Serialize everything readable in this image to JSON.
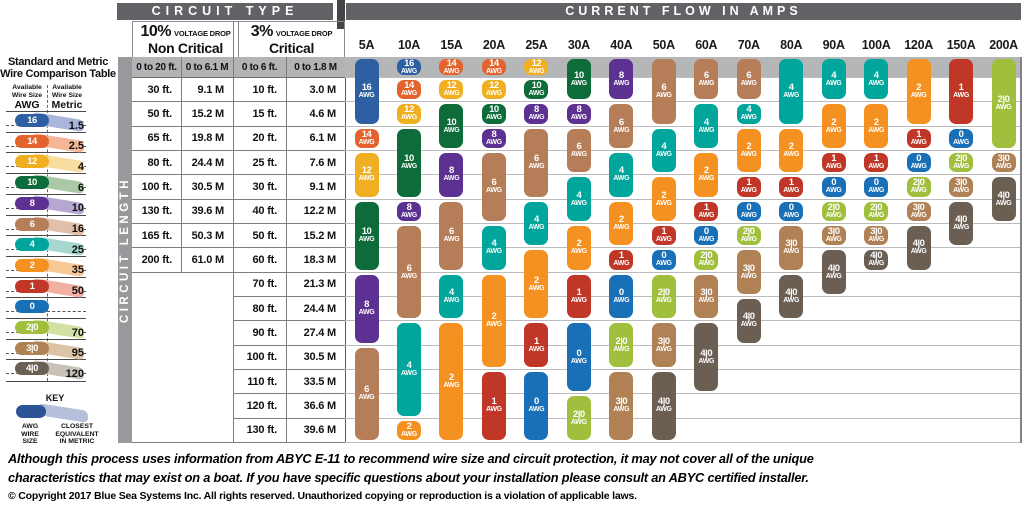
{
  "titles": {
    "circuit_type": "CIRCUIT TYPE",
    "current_flow": "CURRENT FLOW IN AMPS",
    "circuit_length": "CIRCUIT LENGTH",
    "drop_10_pct": "10%",
    "drop_10_sub": "VOLTAGE DROP",
    "drop_10_name": "Non Critical",
    "drop_3_pct": "3%",
    "drop_3_sub": "VOLTAGE DROP",
    "drop_3_name": "Critical"
  },
  "comparison_table": {
    "title_line1": "Standard and Metric",
    "title_line2": "Wire Comparison Table",
    "awg_header": {
      "line1": "Available",
      "line2": "Wire Size",
      "line3": "AWG"
    },
    "metric_header": {
      "line1": "Available",
      "line2": "Wire Size",
      "line3": "Metric"
    },
    "rows": [
      {
        "awg": "16",
        "metric": "1.5",
        "band": "#a9b5d9"
      },
      {
        "awg": "14",
        "metric": "2.5",
        "band": "#f3b697"
      },
      {
        "awg": "12",
        "metric": "4",
        "band": "#f8dda0"
      },
      {
        "awg": "10",
        "metric": "6",
        "band": "#a9c9a7"
      },
      {
        "awg": "8",
        "metric": "10",
        "band": "#b5a6d2"
      },
      {
        "awg": "6",
        "metric": "16",
        "band": "#e0c0a8"
      },
      {
        "awg": "4",
        "metric": "25",
        "band": "#a5d6cf"
      },
      {
        "awg": "2",
        "metric": "35",
        "band": "#f9c897"
      },
      {
        "awg": "1",
        "metric": "50",
        "band": "#f0b0a2"
      },
      {
        "awg": "0",
        "metric": "",
        "band": ""
      },
      {
        "awg": "2|0",
        "metric": "70",
        "band": "#d3e2a4"
      },
      {
        "awg": "3|0",
        "metric": "95",
        "band": "#dcc3a6"
      },
      {
        "awg": "4|0",
        "metric": "120",
        "band": "#c8c1b8"
      }
    ],
    "key": {
      "title": "KEY",
      "pill_label": "AWG\nWIRE\nSIZE",
      "band_label": "CLOSEST\nEQUIVALENT\nIN METRIC",
      "pill_color": "#2d5397",
      "band_color": "#b7c0da"
    }
  },
  "chart_data": {
    "type": "heatmap",
    "title": "CURRENT FLOW IN AMPS",
    "x_axis_label": "CURRENT FLOW IN AMPS",
    "y_axis_label": "CIRCUIT LENGTH",
    "x_labels": [
      "5A",
      "10A",
      "15A",
      "20A",
      "25A",
      "30A",
      "40A",
      "50A",
      "60A",
      "70A",
      "80A",
      "90A",
      "100A",
      "120A",
      "150A",
      "200A"
    ],
    "row_labels": [
      {
        "ft_10pct": "0 to 20 ft.",
        "m_10pct": "0 to 6.1 M",
        "ft_3pct": "0 to 6 ft.",
        "m_3pct": "0 to 1.8 M"
      },
      {
        "ft_10pct": "30 ft.",
        "m_10pct": "9.1 M",
        "ft_3pct": "10 ft.",
        "m_3pct": "3.0 M"
      },
      {
        "ft_10pct": "50 ft.",
        "m_10pct": "15.2 M",
        "ft_3pct": "15 ft.",
        "m_3pct": "4.6 M"
      },
      {
        "ft_10pct": "65 ft.",
        "m_10pct": "19.8 M",
        "ft_3pct": "20 ft.",
        "m_3pct": "6.1 M"
      },
      {
        "ft_10pct": "80 ft.",
        "m_10pct": "24.4 M",
        "ft_3pct": "25 ft.",
        "m_3pct": "7.6 M"
      },
      {
        "ft_10pct": "100 ft.",
        "m_10pct": "30.5 M",
        "ft_3pct": "30 ft.",
        "m_3pct": "9.1 M"
      },
      {
        "ft_10pct": "130 ft.",
        "m_10pct": "39.6 M",
        "ft_3pct": "40 ft.",
        "m_3pct": "12.2 M"
      },
      {
        "ft_10pct": "165 ft.",
        "m_10pct": "50.3 M",
        "ft_3pct": "50 ft.",
        "m_3pct": "15.2 M"
      },
      {
        "ft_10pct": "200 ft.",
        "m_10pct": "61.0 M",
        "ft_3pct": "60 ft.",
        "m_3pct": "18.3 M"
      },
      {
        "ft_10pct": "",
        "m_10pct": "",
        "ft_3pct": "70 ft.",
        "m_3pct": "21.3 M"
      },
      {
        "ft_10pct": "",
        "m_10pct": "",
        "ft_3pct": "80 ft.",
        "m_3pct": "24.4 M"
      },
      {
        "ft_10pct": "",
        "m_10pct": "",
        "ft_3pct": "90 ft.",
        "m_3pct": "27.4 M"
      },
      {
        "ft_10pct": "",
        "m_10pct": "",
        "ft_3pct": "100 ft.",
        "m_3pct": "30.5 M"
      },
      {
        "ft_10pct": "",
        "m_10pct": "",
        "ft_3pct": "110 ft.",
        "m_3pct": "33.5 M"
      },
      {
        "ft_10pct": "",
        "m_10pct": "",
        "ft_3pct": "120 ft.",
        "m_3pct": "36.6 M"
      },
      {
        "ft_10pct": "",
        "m_10pct": "",
        "ft_3pct": "130 ft.",
        "m_3pct": "39.6 M"
      }
    ],
    "wire_colors": {
      "16": "#2e5fa3",
      "14": "#e4632d",
      "12": "#efaf21",
      "10": "#0e6b3a",
      "8": "#5d3191",
      "6": "#b67e58",
      "4": "#00a59b",
      "2": "#f59120",
      "1": "#c13727",
      "0": "#1a70b7",
      "2|0": "#a0bf3d",
      "3|0": "#b08154",
      "4|0": "#6b5f54"
    },
    "columns": [
      {
        "amp": "5A",
        "segments": [
          {
            "awg": "16",
            "rows": [
              0,
              2
            ]
          },
          {
            "awg": "14",
            "rows": [
              3,
              3
            ]
          },
          {
            "awg": "12",
            "rows": [
              4,
              5
            ]
          },
          {
            "awg": "10",
            "rows": [
              6,
              8
            ]
          },
          {
            "awg": "8",
            "rows": [
              9,
              11
            ]
          },
          {
            "awg": "6",
            "rows": [
              12,
              15
            ]
          }
        ]
      },
      {
        "amp": "10A",
        "segments": [
          {
            "awg": "16",
            "rows": [
              0,
              0
            ]
          },
          {
            "awg": "14",
            "rows": [
              1,
              1
            ]
          },
          {
            "awg": "12",
            "rows": [
              2,
              2
            ]
          },
          {
            "awg": "10",
            "rows": [
              3,
              5
            ]
          },
          {
            "awg": "8",
            "rows": [
              6,
              6
            ]
          },
          {
            "awg": "6",
            "rows": [
              7,
              10
            ]
          },
          {
            "awg": "4",
            "rows": [
              11,
              14
            ]
          },
          {
            "awg": "2",
            "rows": [
              15,
              15
            ]
          }
        ]
      },
      {
        "amp": "15A",
        "segments": [
          {
            "awg": "14",
            "rows": [
              0,
              0
            ]
          },
          {
            "awg": "12",
            "rows": [
              1,
              1
            ]
          },
          {
            "awg": "10",
            "rows": [
              2,
              3
            ]
          },
          {
            "awg": "8",
            "rows": [
              4,
              5
            ]
          },
          {
            "awg": "6",
            "rows": [
              6,
              8
            ]
          },
          {
            "awg": "4",
            "rows": [
              9,
              10
            ]
          },
          {
            "awg": "2",
            "rows": [
              11,
              15
            ]
          }
        ]
      },
      {
        "amp": "20A",
        "segments": [
          {
            "awg": "14",
            "rows": [
              0,
              0
            ]
          },
          {
            "awg": "12",
            "rows": [
              1,
              1
            ]
          },
          {
            "awg": "10",
            "rows": [
              2,
              2
            ]
          },
          {
            "awg": "8",
            "rows": [
              3,
              3
            ]
          },
          {
            "awg": "6",
            "rows": [
              4,
              6
            ]
          },
          {
            "awg": "4",
            "rows": [
              7,
              8
            ]
          },
          {
            "awg": "2",
            "rows": [
              9,
              12
            ]
          },
          {
            "awg": "1",
            "rows": [
              13,
              15
            ]
          }
        ]
      },
      {
        "amp": "25A",
        "segments": [
          {
            "awg": "12",
            "rows": [
              0,
              0
            ]
          },
          {
            "awg": "10",
            "rows": [
              1,
              1
            ]
          },
          {
            "awg": "8",
            "rows": [
              2,
              2
            ]
          },
          {
            "awg": "6",
            "rows": [
              3,
              5
            ]
          },
          {
            "awg": "4",
            "rows": [
              6,
              7
            ]
          },
          {
            "awg": "2",
            "rows": [
              8,
              10
            ]
          },
          {
            "awg": "1",
            "rows": [
              11,
              12
            ]
          },
          {
            "awg": "0",
            "rows": [
              13,
              15
            ]
          }
        ]
      },
      {
        "amp": "30A",
        "segments": [
          {
            "awg": "10",
            "rows": [
              0,
              1
            ]
          },
          {
            "awg": "8",
            "rows": [
              2,
              2
            ]
          },
          {
            "awg": "6",
            "rows": [
              3,
              4
            ]
          },
          {
            "awg": "4",
            "rows": [
              5,
              6
            ]
          },
          {
            "awg": "2",
            "rows": [
              7,
              8
            ]
          },
          {
            "awg": "1",
            "rows": [
              9,
              10
            ]
          },
          {
            "awg": "0",
            "rows": [
              11,
              13
            ]
          },
          {
            "awg": "2|0",
            "rows": [
              14,
              15
            ]
          }
        ]
      },
      {
        "amp": "40A",
        "segments": [
          {
            "awg": "8",
            "rows": [
              0,
              1
            ]
          },
          {
            "awg": "6",
            "rows": [
              2,
              3
            ]
          },
          {
            "awg": "4",
            "rows": [
              4,
              5
            ]
          },
          {
            "awg": "2",
            "rows": [
              6,
              7
            ]
          },
          {
            "awg": "1",
            "rows": [
              8,
              8
            ]
          },
          {
            "awg": "0",
            "rows": [
              9,
              10
            ]
          },
          {
            "awg": "2|0",
            "rows": [
              11,
              12
            ]
          },
          {
            "awg": "3|0",
            "rows": [
              13,
              15
            ]
          }
        ]
      },
      {
        "amp": "50A",
        "segments": [
          {
            "awg": "6",
            "rows": [
              0,
              2
            ]
          },
          {
            "awg": "4",
            "rows": [
              3,
              4
            ]
          },
          {
            "awg": "2",
            "rows": [
              5,
              6
            ]
          },
          {
            "awg": "1",
            "rows": [
              7,
              7
            ]
          },
          {
            "awg": "0",
            "rows": [
              8,
              8
            ]
          },
          {
            "awg": "2|0",
            "rows": [
              9,
              10
            ]
          },
          {
            "awg": "3|0",
            "rows": [
              11,
              12
            ]
          },
          {
            "awg": "4|0",
            "rows": [
              13,
              15
            ]
          }
        ]
      },
      {
        "amp": "60A",
        "segments": [
          {
            "awg": "6",
            "rows": [
              0,
              1
            ]
          },
          {
            "awg": "4",
            "rows": [
              2,
              3
            ]
          },
          {
            "awg": "2",
            "rows": [
              4,
              5
            ]
          },
          {
            "awg": "1",
            "rows": [
              6,
              6
            ]
          },
          {
            "awg": "0",
            "rows": [
              7,
              7
            ]
          },
          {
            "awg": "2|0",
            "rows": [
              8,
              8
            ]
          },
          {
            "awg": "3|0",
            "rows": [
              9,
              10
            ]
          },
          {
            "awg": "4|0",
            "rows": [
              11,
              13
            ]
          }
        ]
      },
      {
        "amp": "70A",
        "segments": [
          {
            "awg": "6",
            "rows": [
              0,
              1
            ]
          },
          {
            "awg": "4",
            "rows": [
              2,
              2
            ]
          },
          {
            "awg": "2",
            "rows": [
              3,
              4
            ]
          },
          {
            "awg": "1",
            "rows": [
              5,
              5
            ]
          },
          {
            "awg": "0",
            "rows": [
              6,
              6
            ]
          },
          {
            "awg": "2|0",
            "rows": [
              7,
              7
            ]
          },
          {
            "awg": "3|0",
            "rows": [
              8,
              9
            ]
          },
          {
            "awg": "4|0",
            "rows": [
              10,
              11
            ]
          }
        ]
      },
      {
        "amp": "80A",
        "segments": [
          {
            "awg": "4",
            "rows": [
              0,
              2
            ]
          },
          {
            "awg": "2",
            "rows": [
              3,
              4
            ]
          },
          {
            "awg": "1",
            "rows": [
              5,
              5
            ]
          },
          {
            "awg": "0",
            "rows": [
              6,
              6
            ]
          },
          {
            "awg": "3|0",
            "rows": [
              7,
              8
            ]
          },
          {
            "awg": "4|0",
            "rows": [
              9,
              10
            ]
          }
        ]
      },
      {
        "amp": "90A",
        "segments": [
          {
            "awg": "4",
            "rows": [
              0,
              1
            ]
          },
          {
            "awg": "2",
            "rows": [
              2,
              3
            ]
          },
          {
            "awg": "1",
            "rows": [
              4,
              4
            ]
          },
          {
            "awg": "0",
            "rows": [
              5,
              5
            ]
          },
          {
            "awg": "2|0",
            "rows": [
              6,
              6
            ]
          },
          {
            "awg": "3|0",
            "rows": [
              7,
              7
            ]
          },
          {
            "awg": "4|0",
            "rows": [
              8,
              9
            ]
          }
        ]
      },
      {
        "amp": "100A",
        "segments": [
          {
            "awg": "4",
            "rows": [
              0,
              1
            ]
          },
          {
            "awg": "2",
            "rows": [
              2,
              3
            ]
          },
          {
            "awg": "1",
            "rows": [
              4,
              4
            ]
          },
          {
            "awg": "0",
            "rows": [
              5,
              5
            ]
          },
          {
            "awg": "2|0",
            "rows": [
              6,
              6
            ]
          },
          {
            "awg": "3|0",
            "rows": [
              7,
              7
            ]
          },
          {
            "awg": "4|0",
            "rows": [
              8,
              8
            ]
          }
        ]
      },
      {
        "amp": "120A",
        "segments": [
          {
            "awg": "2",
            "rows": [
              0,
              2
            ]
          },
          {
            "awg": "1",
            "rows": [
              3,
              3
            ]
          },
          {
            "awg": "0",
            "rows": [
              4,
              4
            ]
          },
          {
            "awg": "2|0",
            "rows": [
              5,
              5
            ]
          },
          {
            "awg": "3|0",
            "rows": [
              6,
              6
            ]
          },
          {
            "awg": "4|0",
            "rows": [
              7,
              8
            ]
          }
        ]
      },
      {
        "amp": "150A",
        "segments": [
          {
            "awg": "1",
            "rows": [
              0,
              2
            ]
          },
          {
            "awg": "0",
            "rows": [
              3,
              3
            ]
          },
          {
            "awg": "2|0",
            "rows": [
              4,
              4
            ]
          },
          {
            "awg": "3|0",
            "rows": [
              5,
              5
            ]
          },
          {
            "awg": "4|0",
            "rows": [
              6,
              7
            ]
          }
        ]
      },
      {
        "amp": "200A",
        "segments": [
          {
            "awg": "2|0",
            "rows": [
              0,
              3
            ]
          },
          {
            "awg": "3|0",
            "rows": [
              4,
              4
            ]
          },
          {
            "awg": "4|0",
            "rows": [
              5,
              6
            ]
          }
        ]
      }
    ]
  },
  "footer": {
    "disclaimer_line1": "Although this process uses information from ABYC E-11 to recommend wire size and circuit protection, it may not cover all of the unique",
    "disclaimer_line2": "characteristics that may exist on a boat. If you have specific questions about your installation please consult an ABYC certified installer.",
    "copyright": "© Copyright 2017 Blue Sea Systems Inc. All rights reserved. Unauthorized copying or reproduction is a violation of applicable laws."
  }
}
